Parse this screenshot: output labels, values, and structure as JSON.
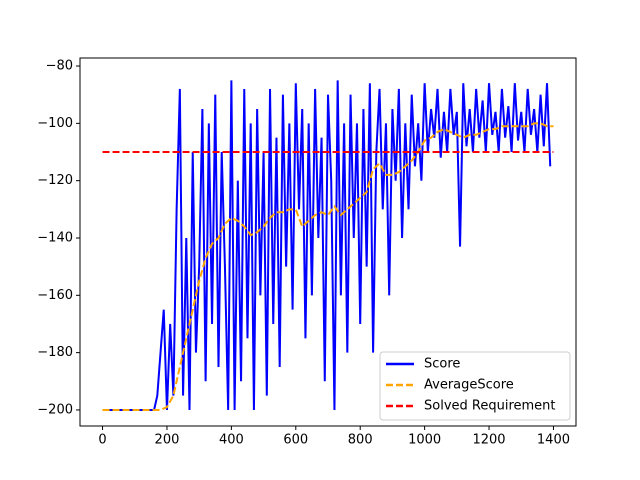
{
  "chart_data": {
    "type": "line",
    "xlim": [
      -70,
      1470
    ],
    "ylim": [
      -205.6,
      -77.2
    ],
    "xticks": [
      0,
      200,
      400,
      600,
      800,
      1000,
      1200,
      1400
    ],
    "yticks": [
      {
        "value": -200,
        "label": "−200"
      },
      {
        "value": -180,
        "label": "−180"
      },
      {
        "value": -160,
        "label": "−160"
      },
      {
        "value": -140,
        "label": "−140"
      },
      {
        "value": -120,
        "label": "−120"
      },
      {
        "value": -100,
        "label": "−100"
      },
      {
        "value": -80,
        "label": "−80"
      }
    ],
    "legend": "lower right",
    "series": [
      {
        "name": "Score",
        "color": "#0000ff",
        "style": "solid",
        "x": [
          0,
          10,
          20,
          30,
          40,
          50,
          60,
          70,
          80,
          90,
          100,
          110,
          120,
          130,
          140,
          150,
          160,
          170,
          180,
          190,
          200,
          210,
          220,
          230,
          240,
          250,
          260,
          270,
          280,
          290,
          300,
          310,
          320,
          330,
          340,
          350,
          360,
          370,
          380,
          390,
          400,
          410,
          420,
          430,
          440,
          450,
          460,
          470,
          480,
          490,
          500,
          510,
          520,
          530,
          540,
          550,
          560,
          570,
          580,
          590,
          600,
          610,
          620,
          630,
          640,
          650,
          660,
          670,
          680,
          690,
          700,
          710,
          720,
          730,
          740,
          750,
          760,
          770,
          780,
          790,
          800,
          810,
          820,
          830,
          840,
          850,
          860,
          870,
          880,
          890,
          900,
          910,
          920,
          930,
          940,
          950,
          960,
          970,
          980,
          990,
          1000,
          1010,
          1020,
          1030,
          1040,
          1050,
          1060,
          1070,
          1080,
          1090,
          1100,
          1110,
          1120,
          1130,
          1140,
          1150,
          1160,
          1170,
          1180,
          1190,
          1200,
          1210,
          1220,
          1230,
          1240,
          1250,
          1260,
          1270,
          1280,
          1290,
          1300,
          1310,
          1320,
          1330,
          1340,
          1350,
          1360,
          1370,
          1380,
          1390
        ],
        "values": [
          -200,
          -200,
          -200,
          -200,
          -200,
          -200,
          -200,
          -200,
          -200,
          -200,
          -200,
          -200,
          -200,
          -200,
          -200,
          -200,
          -200,
          -195,
          -180,
          -165,
          -200,
          -170,
          -195,
          -130,
          -88,
          -195,
          -140,
          -200,
          -110,
          -180,
          -150,
          -95,
          -190,
          -100,
          -170,
          -90,
          -185,
          -110,
          -150,
          -200,
          -85,
          -200,
          -120,
          -190,
          -88,
          -175,
          -100,
          -200,
          -95,
          -160,
          -110,
          -195,
          -88,
          -170,
          -105,
          -185,
          -90,
          -150,
          -100,
          -165,
          -86,
          -130,
          -95,
          -175,
          -100,
          -160,
          -88,
          -140,
          -105,
          -190,
          -90,
          -120,
          -200,
          -85,
          -160,
          -100,
          -180,
          -90,
          -140,
          -100,
          -170,
          -95,
          -150,
          -86,
          -180,
          -110,
          -88,
          -130,
          -100,
          -160,
          -95,
          -120,
          -88,
          -140,
          -100,
          -130,
          -90,
          -115,
          -100,
          -120,
          -86,
          -110,
          -95,
          -105,
          -88,
          -112,
          -96,
          -110,
          -88,
          -104,
          -96,
          -143,
          -86,
          -108,
          -95,
          -110,
          -88,
          -105,
          -92,
          -110,
          -86,
          -104,
          -96,
          -110,
          -88,
          -105,
          -94,
          -110,
          -86,
          -106,
          -96,
          -110,
          -88,
          -104,
          -95,
          -110,
          -90,
          -108,
          -86,
          -115
        ]
      },
      {
        "name": "AverageScore",
        "color": "#ffa500",
        "style": "dashed",
        "x": [
          0,
          20,
          40,
          60,
          80,
          100,
          120,
          140,
          160,
          180,
          200,
          220,
          240,
          260,
          280,
          300,
          320,
          340,
          360,
          380,
          400,
          420,
          440,
          460,
          480,
          500,
          520,
          540,
          560,
          580,
          600,
          620,
          640,
          660,
          680,
          700,
          720,
          740,
          760,
          780,
          800,
          820,
          840,
          860,
          880,
          900,
          920,
          940,
          960,
          980,
          1000,
          1020,
          1040,
          1060,
          1080,
          1100,
          1120,
          1140,
          1160,
          1180,
          1200,
          1220,
          1240,
          1260,
          1280,
          1300,
          1320,
          1340,
          1360,
          1380,
          1400
        ],
        "values": [
          -200,
          -200,
          -200,
          -200,
          -200,
          -200,
          -200,
          -200,
          -200,
          -200,
          -199,
          -195,
          -185,
          -175,
          -165,
          -155,
          -147,
          -142,
          -140,
          -135,
          -133,
          -134,
          -136,
          -139,
          -138,
          -136,
          -133,
          -131,
          -131,
          -130,
          -130,
          -136,
          -134,
          -132,
          -131,
          -132,
          -129,
          -132,
          -130,
          -128,
          -126,
          -124,
          -116,
          -114,
          -118,
          -118,
          -117,
          -115,
          -113,
          -110,
          -106,
          -105,
          -103,
          -102,
          -103,
          -104,
          -105,
          -104,
          -104,
          -103,
          -102,
          -102,
          -101,
          -101,
          -101,
          -101,
          -101,
          -100,
          -100,
          -101,
          -101
        ]
      },
      {
        "name": "Solved Requirement",
        "color": "#ff0000",
        "style": "dashed",
        "x": [
          0,
          1400
        ],
        "values": [
          -110,
          -110
        ]
      }
    ]
  }
}
